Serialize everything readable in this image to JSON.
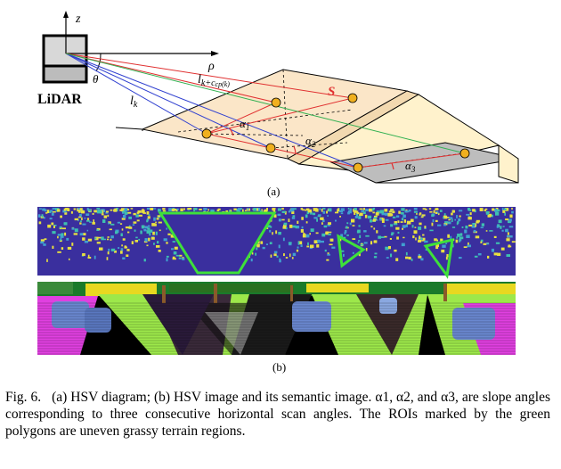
{
  "diagram": {
    "lidar_label": "LiDAR",
    "z_label": "z",
    "rho_label": "ρ",
    "theta_label": "θ",
    "lk_label": "l",
    "lk_sub": "k",
    "lkc_main": "l",
    "lkc_sub": "k+c",
    "lkc_subsub": "cp(k)",
    "s_label": "S",
    "alpha1": "α",
    "alpha1_sub": "1",
    "alpha2": "α",
    "alpha2_sub": "2",
    "alpha3": "α",
    "alpha3_sub": "3",
    "label_a": "(a)",
    "label_b": "(b)"
  },
  "caption": {
    "prefix": "Fig. 6.",
    "text": "(a) HSV diagram; (b) HSV image and its semantic image. α1, α2, and α3, are slope angles corresponding to three consecutive horizontal scan angles. The ROIs marked by the green polygons are uneven grassy terrain regions."
  },
  "colors": {
    "hsv_bg": "#3a2f9e",
    "hsv_yellow": "#e8e040",
    "roi_green": "#3ee03a",
    "plane_fill": "#fbe6c8",
    "slope_fill": "#fff2cc",
    "gray_plane": "#bdbdbd",
    "point_fill": "#f0b020",
    "line_red": "#e03030",
    "line_blue": "#3040d0",
    "line_green": "#30b050"
  }
}
